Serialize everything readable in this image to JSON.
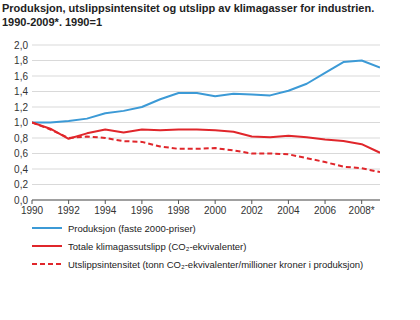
{
  "chart_data": {
    "type": "line",
    "title": "Produksjon, utslippsintensitet og utslipp av klimagasser for industrien.",
    "subtitle": "1990-2009*. 1990=1",
    "x": [
      1990,
      1991,
      1992,
      1993,
      1994,
      1995,
      1996,
      1997,
      1998,
      1999,
      2000,
      2001,
      2002,
      2003,
      2004,
      2005,
      2006,
      2007,
      2008,
      2009
    ],
    "xlim": [
      1990,
      2009
    ],
    "xticks": [
      1990,
      1992,
      1994,
      1996,
      1998,
      2000,
      2002,
      2004,
      2006,
      {
        "value": 2008,
        "label": "2008*"
      }
    ],
    "ylim": [
      0,
      2
    ],
    "yticks": [
      {
        "value": 0,
        "label": "0,0"
      },
      {
        "value": 0.2,
        "label": "0,2"
      },
      {
        "value": 0.4,
        "label": "0,4"
      },
      {
        "value": 0.6,
        "label": "0,6"
      },
      {
        "value": 0.8,
        "label": "0,8"
      },
      {
        "value": 1,
        "label": "1,0"
      },
      {
        "value": 1.2,
        "label": "1,2"
      },
      {
        "value": 1.4,
        "label": "1,4"
      },
      {
        "value": 1.6,
        "label": "1,6"
      },
      {
        "value": 1.8,
        "label": "1,8"
      },
      {
        "value": 2,
        "label": "2,0"
      }
    ],
    "grid": true,
    "legend": "bottom",
    "series": [
      {
        "name": "Produksjon (faste 2000-priser)",
        "color": "#3c9ad6",
        "line_style": "solid",
        "values": [
          1.0,
          1.0,
          1.02,
          1.05,
          1.12,
          1.15,
          1.2,
          1.3,
          1.38,
          1.38,
          1.34,
          1.37,
          1.36,
          1.35,
          1.41,
          1.5,
          1.64,
          1.78,
          1.8,
          1.71
        ]
      },
      {
        "name": "Totale klimagassutslipp (CO₂-ekvivalenter)",
        "color": "#e0262b",
        "line_style": "solid",
        "values": [
          1.0,
          0.92,
          0.79,
          0.86,
          0.91,
          0.87,
          0.91,
          0.9,
          0.91,
          0.91,
          0.9,
          0.88,
          0.82,
          0.81,
          0.83,
          0.81,
          0.78,
          0.76,
          0.72,
          0.61
        ]
      },
      {
        "name": "Utslippsintensitet (tonn CO₂-ekvivalenter/millioner kroner i produksjon)",
        "color": "#e0262b",
        "line_style": "dashed",
        "values": [
          1.0,
          0.91,
          0.8,
          0.82,
          0.8,
          0.76,
          0.75,
          0.69,
          0.66,
          0.66,
          0.67,
          0.64,
          0.6,
          0.6,
          0.59,
          0.54,
          0.49,
          0.43,
          0.41,
          0.36
        ]
      }
    ]
  }
}
